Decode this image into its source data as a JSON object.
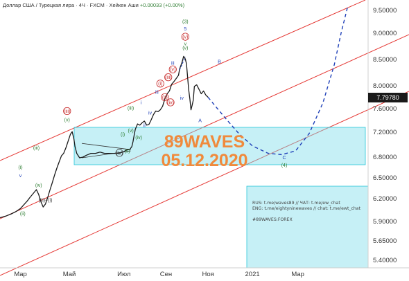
{
  "header": {
    "symbol": "Доллар США / Турецкая лира · 4Ч · FXCM · Хейкен Аши",
    "change": "+0.00033 (+0.00%)"
  },
  "current_price": "7.79780",
  "watermark": {
    "line1": "89WAVES",
    "line2": "05.12.2020"
  },
  "info_lines": [
    "RUS: t.me/waves89 // ЧАТ: t.me/ew_chat",
    "ENG: t.me/eightyninewaves // chat: t.me/ewt_chat",
    "",
    "#89WAVES:FOREX"
  ],
  "colors": {
    "price": "#1a1a1a",
    "channel": "#e53935",
    "projection": "#1e3fb8",
    "box": "#80deea",
    "wave_green": "#2e7d32",
    "wave_red": "#c62828",
    "wave_blue": "#1e3fb8",
    "watermark": "#f08a3c"
  },
  "chart_data": {
    "type": "line",
    "title": "Доллар США / Турецкая лира",
    "xlabel": "",
    "ylabel": "",
    "x_ticks": [
      "Мар",
      "Май",
      "Июл",
      "Сен",
      "Ноя",
      "2021",
      "Мар"
    ],
    "y_ticks": [
      "9.50000",
      "9.00000",
      "8.50000",
      "8.00000",
      "7.60000",
      "7.20000",
      "6.80000",
      "6.50000",
      "6.20000",
      "5.90000",
      "5.65000",
      "5.40000"
    ],
    "ylim": [
      5.3,
      9.7
    ],
    "series": [
      {
        "values": [
          [
            0,
            5.95
          ],
          [
            5,
            5.97
          ],
          [
            10,
            6.0
          ],
          [
            14,
            6.03
          ],
          [
            18,
            6.07
          ],
          [
            21,
            6.12
          ],
          [
            24,
            6.17
          ],
          [
            26,
            6.21
          ],
          [
            28,
            6.25
          ],
          [
            30,
            6.29
          ],
          [
            32,
            6.33
          ],
          [
            34,
            6.26
          ],
          [
            36,
            6.16
          ],
          [
            38,
            6.09
          ],
          [
            40,
            6.13
          ],
          [
            42,
            6.22
          ],
          [
            44,
            6.33
          ],
          [
            46,
            6.43
          ],
          [
            48,
            6.54
          ],
          [
            50,
            6.64
          ],
          [
            52,
            6.73
          ],
          [
            54,
            6.82
          ],
          [
            56,
            6.86
          ],
          [
            58,
            6.95
          ],
          [
            60,
            7.06
          ],
          [
            62,
            7.17
          ],
          [
            63.5,
            7.21
          ],
          [
            65,
            7.09
          ],
          [
            66,
            6.97
          ],
          [
            67.5,
            6.86
          ],
          [
            70,
            6.79
          ],
          [
            73,
            6.8
          ],
          [
            76,
            6.83
          ],
          [
            80,
            6.86
          ],
          [
            84,
            6.86
          ],
          [
            88,
            6.88
          ],
          [
            92,
            6.86
          ],
          [
            96,
            6.86
          ],
          [
            100,
            6.86
          ],
          [
            104,
            6.86
          ],
          [
            108,
            6.88
          ],
          [
            112,
            6.92
          ],
          [
            114,
            6.92
          ],
          [
            116,
            6.97
          ],
          [
            117,
            7.05
          ],
          [
            118,
            7.15
          ],
          [
            119,
            7.25
          ],
          [
            121,
            7.34
          ],
          [
            123,
            7.32
          ],
          [
            125,
            7.36
          ],
          [
            127,
            7.39
          ],
          [
            129,
            7.32
          ],
          [
            131,
            7.33
          ],
          [
            133,
            7.41
          ],
          [
            135,
            7.5
          ],
          [
            137,
            7.56
          ],
          [
            139,
            7.55
          ],
          [
            141,
            7.58
          ],
          [
            143,
            7.64
          ],
          [
            145,
            7.77
          ],
          [
            147,
            7.86
          ],
          [
            149,
            7.91
          ],
          [
            151,
            8.03
          ],
          [
            153,
            8.08
          ],
          [
            155,
            8.14
          ],
          [
            157,
            8.2
          ],
          [
            158,
            8.32
          ],
          [
            160,
            8.44
          ],
          [
            161.5,
            8.56
          ],
          [
            163,
            8.51
          ],
          [
            164,
            8.42
          ],
          [
            165,
            8.17
          ],
          [
            166,
            7.93
          ],
          [
            167,
            7.77
          ],
          [
            168,
            7.58
          ],
          [
            169,
            7.66
          ],
          [
            170,
            7.75
          ],
          [
            171,
            7.99
          ],
          [
            173,
            8.02
          ],
          [
            175,
            7.94
          ],
          [
            177,
            7.86
          ],
          [
            179,
            7.91
          ],
          [
            181,
            7.84
          ],
          [
            183,
            7.8
          ]
        ]
      }
    ],
    "projection": [
      [
        183,
        7.8
      ],
      [
        190,
        7.63
      ],
      [
        200,
        7.4
      ],
      [
        210,
        7.18
      ],
      [
        222,
        6.98
      ],
      [
        236,
        6.86
      ],
      [
        248,
        6.84
      ],
      [
        260,
        6.9
      ],
      [
        272,
        7.18
      ],
      [
        284,
        7.7
      ],
      [
        294,
        8.4
      ],
      [
        300,
        9.0
      ],
      [
        306,
        9.6
      ]
    ],
    "wave_labels": [
      {
        "text": "(3)",
        "x": 163,
        "y": 9.22,
        "color": "green"
      },
      {
        "text": "5",
        "x": 163,
        "y": 9.06,
        "color": "blue"
      },
      {
        "text": "(v)",
        "x": 163,
        "y": 8.9,
        "color": "red_circle"
      },
      {
        "text": "v",
        "x": 163,
        "y": 8.77,
        "color": "green"
      },
      {
        "text": "(v)",
        "x": 163,
        "y": 8.69,
        "color": "green"
      },
      {
        "text": "(iii)",
        "x": 59,
        "y": 7.53,
        "color": "red_circle"
      },
      {
        "text": "(v)",
        "x": 59,
        "y": 7.38,
        "color": "green"
      },
      {
        "text": "(i)",
        "x": 18,
        "y": 6.63,
        "color": "green"
      },
      {
        "text": "v",
        "x": 18,
        "y": 6.51,
        "color": "blue"
      },
      {
        "text": "(iii)",
        "x": 32,
        "y": 6.92,
        "color": "green"
      },
      {
        "text": "(iv)",
        "x": 34,
        "y": 6.37,
        "color": "green"
      },
      {
        "text": "(iii)+(i)",
        "x": 40,
        "y": 6.16,
        "color": "dark"
      },
      {
        "text": "(ii)",
        "x": 20,
        "y": 5.98,
        "color": "green"
      },
      {
        "text": "(iii)",
        "x": 115,
        "y": 7.58,
        "color": "green"
      },
      {
        "text": "i",
        "x": 124,
        "y": 7.68,
        "color": "blue"
      },
      {
        "text": "iii",
        "x": 138,
        "y": 7.86,
        "color": "blue"
      },
      {
        "text": "(i)",
        "x": 108,
        "y": 7.14,
        "color": "green"
      },
      {
        "text": "ii",
        "x": 127,
        "y": 7.29,
        "color": "blue"
      },
      {
        "text": "iv",
        "x": 132,
        "y": 7.5,
        "color": "blue"
      },
      {
        "text": "(iv)",
        "x": 122,
        "y": 7.09,
        "color": "green"
      },
      {
        "text": "(ii)",
        "x": 112,
        "y": 6.87,
        "color": "green"
      },
      {
        "text": "(iv)",
        "x": 105,
        "y": 6.84,
        "color": "dark_circle"
      },
      {
        "text": "(v)",
        "x": 115,
        "y": 7.2,
        "color": "green"
      },
      {
        "text": "(i)",
        "x": 141,
        "y": 8.01,
        "color": "red_circle"
      },
      {
        "text": "(ii)",
        "x": 145,
        "y": 7.77,
        "color": "red_circle"
      },
      {
        "text": "(iii)",
        "x": 148,
        "y": 8.13,
        "color": "red_circle"
      },
      {
        "text": "(iv)",
        "x": 150,
        "y": 7.68,
        "color": "red_circle"
      },
      {
        "text": "(v)",
        "x": 152,
        "y": 8.28,
        "color": "red_circle"
      },
      {
        "text": "iii",
        "x": 152,
        "y": 8.4,
        "color": "blue"
      },
      {
        "text": "iv",
        "x": 160,
        "y": 7.76,
        "color": "blue"
      },
      {
        "text": "A",
        "x": 176,
        "y": 7.37,
        "color": "blue"
      },
      {
        "text": "B",
        "x": 193,
        "y": 8.43,
        "color": "blue"
      },
      {
        "text": "C",
        "x": 250,
        "y": 6.77,
        "color": "blue"
      },
      {
        "text": "(4)",
        "x": 250,
        "y": 6.66,
        "color": "green"
      }
    ]
  }
}
